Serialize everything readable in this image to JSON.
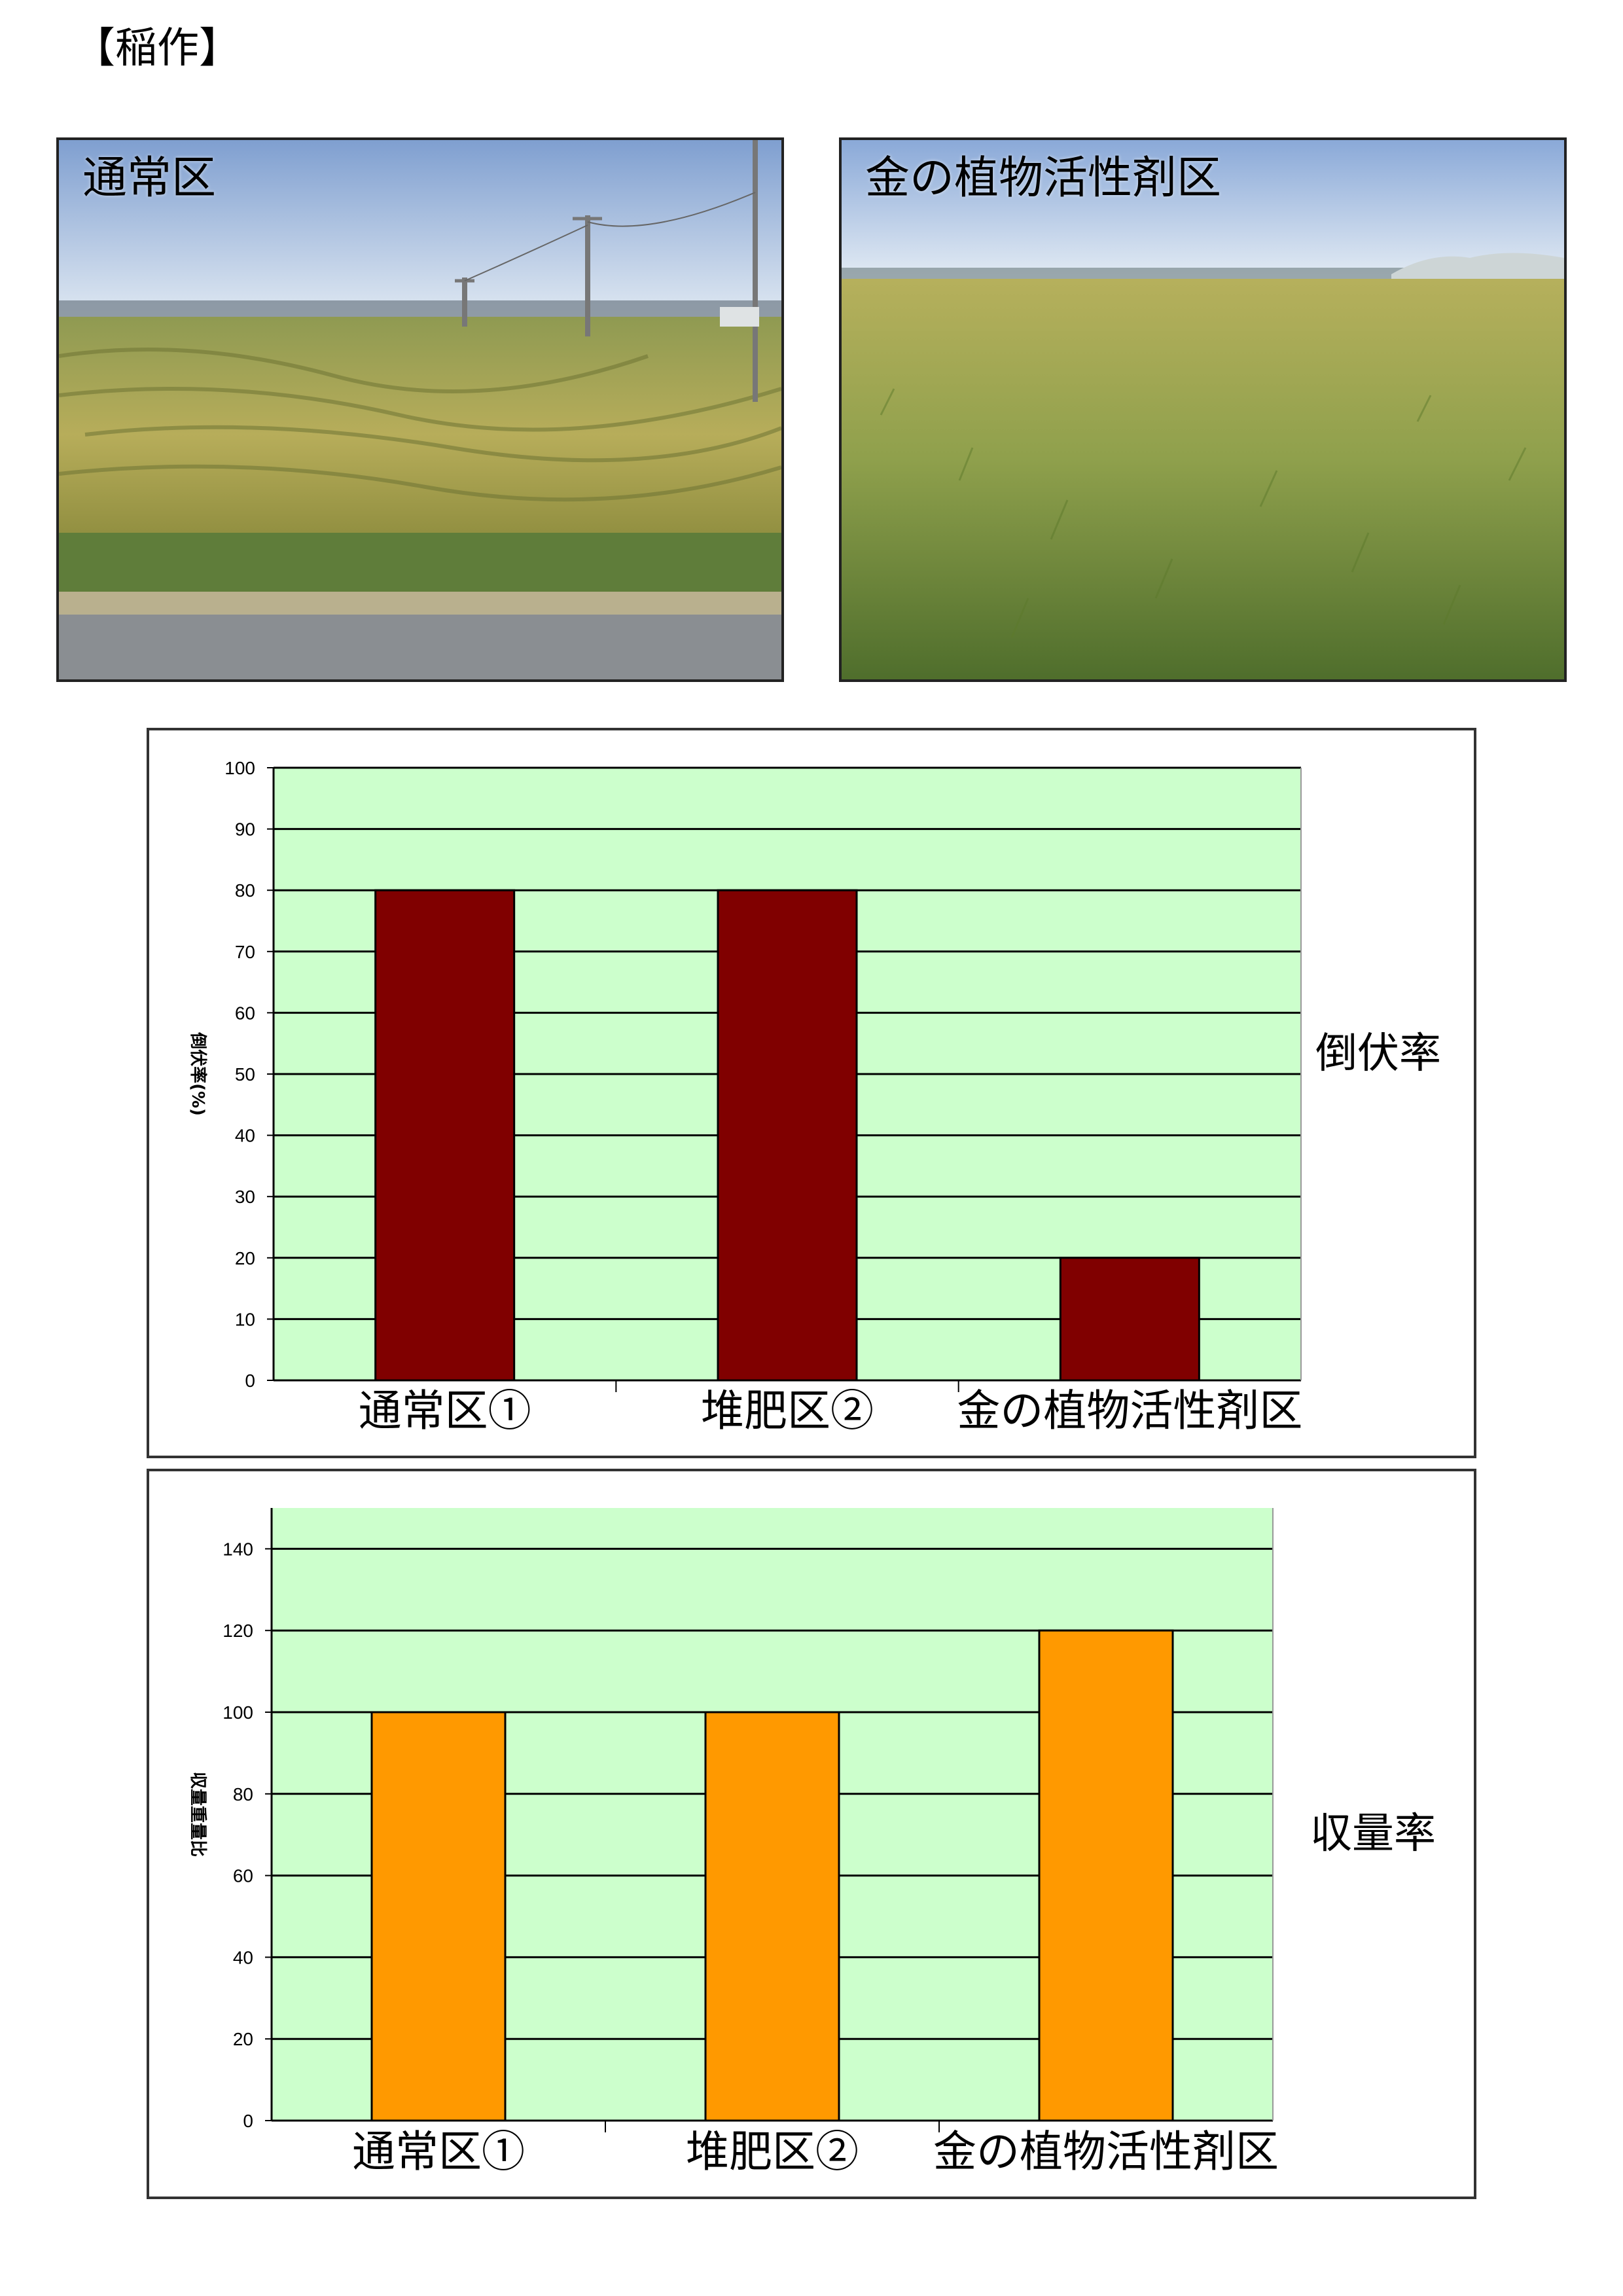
{
  "heading": "【稲作】",
  "photos": [
    {
      "label": "通常区",
      "description": "lodged rice field"
    },
    {
      "label": "金の植物活性剤区",
      "description": "upright rice field"
    }
  ],
  "colors": {
    "plot_bg": "#ccffcc",
    "grid": "#000000",
    "bar_lodging": "#800000",
    "bar_yield": "#ff9900"
  },
  "chart_data": [
    {
      "type": "bar",
      "side_label": "倒伏率",
      "ylabel": "倒伏率(%)",
      "categories": [
        "通常区①",
        "堆肥区②",
        "金の植物活性剤区"
      ],
      "values": [
        80,
        80,
        20
      ],
      "ylim": [
        0,
        100
      ],
      "yticks": [
        0,
        10,
        20,
        30,
        40,
        50,
        60,
        70,
        80,
        90,
        100
      ],
      "grid": true
    },
    {
      "type": "bar",
      "side_label": "収量率",
      "ylabel": "収量重量比",
      "categories": [
        "通常区①",
        "堆肥区②",
        "金の植物活性剤区"
      ],
      "values": [
        100,
        100,
        120
      ],
      "ylim": [
        0,
        150
      ],
      "yticks": [
        0,
        20,
        40,
        60,
        80,
        100,
        120,
        140
      ],
      "grid": true
    }
  ]
}
